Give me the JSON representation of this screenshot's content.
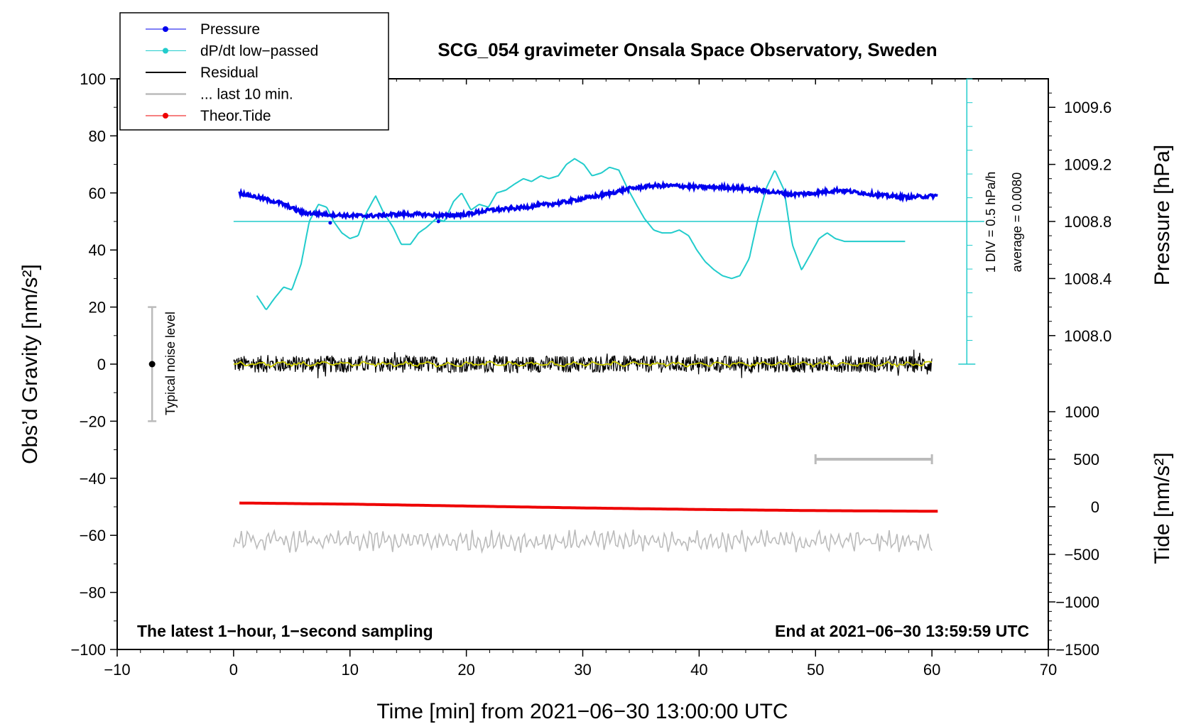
{
  "chart_data": {
    "type": "line",
    "title": "SCG_054 gravimeter Onsala Space Observatory, Sweden",
    "xlabel": "Time [min] from 2021−06−30 13:00:00 UTC",
    "ylabel_left": "Obs’d Gravity [nm/s²]",
    "ylabel_right_pressure": "Pressure [hPa]",
    "ylabel_right_tide": "Tide [nm/s²]",
    "xlim": [
      -10,
      70
    ],
    "ylim": [
      -100,
      100
    ],
    "x_ticks": [
      "−10",
      "0",
      "10",
      "20",
      "30",
      "40",
      "50",
      "60",
      "70"
    ],
    "x_tick_values": [
      -10,
      0,
      10,
      20,
      30,
      40,
      50,
      60,
      70
    ],
    "y_ticks": [
      "100",
      "80",
      "60",
      "40",
      "20",
      "0",
      "−20",
      "−40",
      "−60",
      "−80",
      "−100"
    ],
    "y_tick_values": [
      100,
      80,
      60,
      40,
      20,
      0,
      -20,
      -40,
      -60,
      -80,
      -100
    ],
    "pressure_axis": {
      "ticks": [
        "1009.6",
        "1009.2",
        "1008.8",
        "1008.4",
        "1008.0"
      ],
      "tick_values": [
        1009.6,
        1009.2,
        1008.8,
        1008.4,
        1008.0
      ],
      "gravity_at_1008_8": 50,
      "gravity_per_hPa": 50
    },
    "tide_axis": {
      "ticks": [
        "1000",
        "500",
        "0",
        "−500",
        "−1000",
        "−1500"
      ],
      "tick_values": [
        1000,
        500,
        0,
        -500,
        -1000,
        -1500
      ],
      "gravity_at_0": -50,
      "gravity_per_1000": 33.33
    },
    "dpdt_scale": {
      "label": "1 DIV = 0.5 hPa/h",
      "average": "average = 0.0080",
      "x": 63,
      "y_from": 0,
      "y_to": 100,
      "baseline": 50
    },
    "noise_bar": {
      "label": "Typical noise level",
      "x": -7,
      "center": 0,
      "low": -20,
      "high": 20
    },
    "last10_bar": {
      "x_from": 50,
      "x_to": 60,
      "tide_value": 500
    },
    "footer_left": "The latest 1−hour, 1−second sampling",
    "footer_right": "End at 2021−06−30 13:59:59 UTC",
    "legend": [
      {
        "label": "Pressure",
        "color": "#0000ee",
        "marker": true
      },
      {
        "label": "dP/dt low−passed",
        "color": "#22cccc",
        "marker": true
      },
      {
        "label": "Residual",
        "color": "#000000",
        "marker": false
      },
      {
        "label": "... last 10 min.",
        "color": "#bbbbbb",
        "marker": false
      },
      {
        "label": "Theor.Tide",
        "color": "#ee0000",
        "marker": true
      }
    ],
    "series": [
      {
        "name": "Pressure",
        "color": "#0000ee",
        "units": "hPa",
        "x": [
          0.5,
          2,
          4,
          6,
          8,
          10,
          12,
          14,
          16,
          18,
          20,
          22,
          24,
          26,
          28,
          30,
          32,
          34,
          36,
          38,
          40,
          42,
          44,
          46,
          48,
          50,
          52,
          54,
          56,
          58,
          60.5
        ],
        "values": [
          1009.0,
          1008.97,
          1008.93,
          1008.86,
          1008.85,
          1008.84,
          1008.84,
          1008.85,
          1008.85,
          1008.84,
          1008.85,
          1008.88,
          1008.89,
          1008.91,
          1008.93,
          1008.96,
          1008.99,
          1009.03,
          1009.05,
          1009.05,
          1009.04,
          1009.04,
          1009.03,
          1009.01,
          1008.99,
          1009.0,
          1009.02,
          1009.0,
          1008.98,
          1008.97,
          1008.98
        ]
      },
      {
        "name": "dP/dt low−passed",
        "color": "#22cccc",
        "units": "gravity-axis",
        "x": [
          2,
          2.8,
          3.5,
          4.3,
          5.0,
          5.8,
          6.5,
          7.3,
          8.0,
          8.6,
          9.3,
          10.0,
          10.7,
          11.4,
          12.2,
          12.9,
          13.7,
          14.4,
          15.2,
          15.9,
          16.6,
          17.4,
          18.1,
          18.9,
          19.6,
          20.4,
          21.1,
          21.9,
          22.6,
          23.4,
          24.1,
          24.9,
          25.6,
          26.4,
          27.1,
          27.9,
          28.6,
          29.3,
          30.1,
          30.8,
          31.6,
          32.3,
          33.1,
          33.8,
          34.6,
          35.3,
          36.1,
          36.8,
          37.6,
          38.3,
          39.1,
          39.8,
          40.5,
          41.3,
          42.0,
          42.8,
          43.5,
          44.3,
          45.0,
          45.8,
          46.5,
          47.3,
          48.0,
          48.8,
          49.5,
          50.3,
          51.0,
          51.7,
          52.5,
          53.2,
          54.0,
          54.7,
          55.5,
          56.2,
          57.0,
          57.7
        ],
        "values": [
          24,
          19,
          23,
          27,
          26,
          35,
          50,
          56,
          55,
          50,
          46,
          44,
          45,
          53,
          59,
          53,
          48,
          42,
          42,
          46,
          48,
          51,
          50,
          57,
          60,
          54,
          56,
          55,
          60,
          61,
          63,
          65,
          64,
          66,
          65,
          66,
          70,
          72,
          70,
          66,
          67,
          69,
          68,
          62,
          56,
          51,
          47,
          46,
          46,
          47,
          45,
          40,
          36,
          33,
          31,
          30,
          31,
          37,
          50,
          62,
          68,
          61,
          42,
          33,
          38,
          44,
          46,
          44,
          43,
          43,
          43,
          43,
          43,
          43,
          43,
          43
        ]
      },
      {
        "name": "Residual",
        "color": "#000000",
        "units": "nm/s²",
        "x_range": [
          0,
          60
        ],
        "center": 0,
        "noise_amplitude": 3,
        "smooth_color": "#cccc00"
      },
      {
        "name": "... last 10 min.",
        "color": "#bbbbbb",
        "units": "nm/s²",
        "x_range": [
          0,
          60
        ],
        "center": -62,
        "noise_amplitude": 3
      },
      {
        "name": "Theor.Tide",
        "color": "#ee0000",
        "units": "nm/s² (tide axis)",
        "x": [
          0.5,
          10,
          20,
          30,
          40,
          50,
          60.5
        ],
        "values": [
          40,
          28,
          8,
          -12,
          -28,
          -40,
          -47
        ]
      }
    ]
  }
}
